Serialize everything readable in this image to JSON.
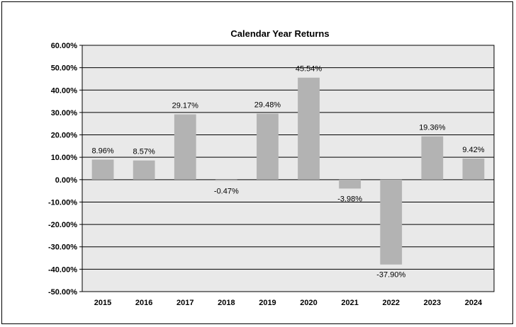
{
  "chart_data": {
    "type": "bar",
    "title": "Calendar Year  Returns",
    "xlabel": "",
    "ylabel": "",
    "categories": [
      "2015",
      "2016",
      "2017",
      "2018",
      "2019",
      "2020",
      "2021",
      "2022",
      "2023",
      "2024"
    ],
    "values": [
      8.96,
      8.57,
      29.17,
      -0.47,
      29.48,
      45.54,
      -3.98,
      -37.9,
      19.36,
      9.42
    ],
    "value_labels": [
      "8.96%",
      "8.57%",
      "29.17%",
      "-0.47%",
      "29.48%",
      "45.54%",
      "-3.98%",
      "-37.90%",
      "19.36%",
      "9.42%"
    ],
    "ylim": [
      -50,
      60
    ],
    "yticks": [
      60,
      50,
      40,
      30,
      20,
      10,
      0,
      -10,
      -20,
      -30,
      -40,
      -50
    ],
    "ytick_labels": [
      "60.00%",
      "50.00%",
      "40.00%",
      "30.00%",
      "20.00%",
      "10.00%",
      "0.00%",
      "-10.00%",
      "-20.00%",
      "-30.00%",
      "-40.00%",
      "-50.00%"
    ],
    "grid": true,
    "legend": "none",
    "colors": {
      "bar": "#b3b3b3",
      "plot_bg": "#e9e9e9",
      "grid": "#000000"
    }
  }
}
